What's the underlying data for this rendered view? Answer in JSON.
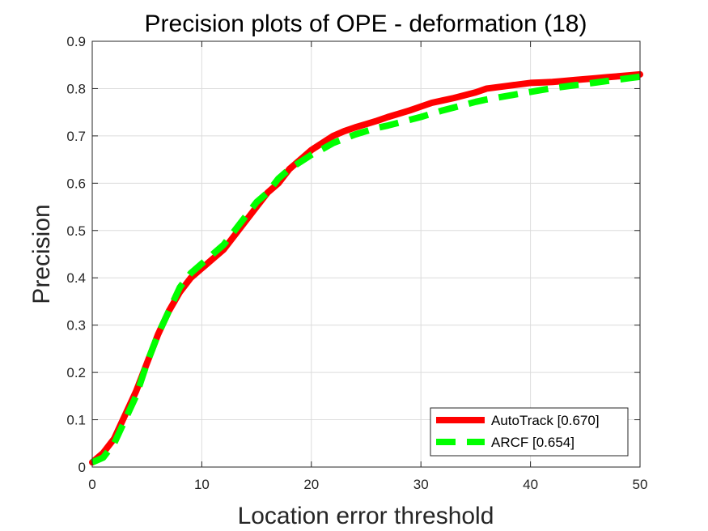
{
  "chart_data": {
    "type": "line",
    "title": "Precision plots of OPE - deformation (18)",
    "xlabel": "Location error threshold",
    "ylabel": "Precision",
    "xlim": [
      0,
      50
    ],
    "ylim": [
      0,
      0.9
    ],
    "x_ticks": [
      "0",
      "10",
      "20",
      "30",
      "40",
      "50"
    ],
    "y_ticks": [
      "0",
      "0.1",
      "0.2",
      "0.3",
      "0.4",
      "0.5",
      "0.6",
      "0.7",
      "0.8",
      "0.9"
    ],
    "grid": true,
    "legend_position": "bottom-right",
    "x": [
      0,
      1,
      2,
      3,
      4,
      5,
      6,
      7,
      8,
      9,
      10,
      11,
      12,
      13,
      14,
      15,
      16,
      17,
      18,
      19,
      20,
      21,
      22,
      23,
      24,
      25,
      26,
      27,
      28,
      29,
      30,
      31,
      32,
      33,
      34,
      35,
      36,
      37,
      38,
      39,
      40,
      41,
      42,
      43,
      44,
      45,
      46,
      47,
      48,
      49,
      50
    ],
    "series": [
      {
        "name": "AutoTrack [0.670]",
        "color": "#ff0000",
        "style": "solid",
        "values": [
          0.01,
          0.03,
          0.06,
          0.11,
          0.16,
          0.22,
          0.28,
          0.33,
          0.37,
          0.4,
          0.42,
          0.44,
          0.46,
          0.49,
          0.52,
          0.55,
          0.58,
          0.6,
          0.63,
          0.65,
          0.67,
          0.685,
          0.7,
          0.71,
          0.718,
          0.725,
          0.732,
          0.74,
          0.747,
          0.754,
          0.762,
          0.77,
          0.775,
          0.78,
          0.786,
          0.792,
          0.8,
          0.803,
          0.806,
          0.809,
          0.812,
          0.813,
          0.814,
          0.816,
          0.818,
          0.82,
          0.822,
          0.824,
          0.826,
          0.828,
          0.83
        ]
      },
      {
        "name": "ARCF [0.654]",
        "color": "#00ff00",
        "style": "dashed",
        "values": [
          0.01,
          0.02,
          0.05,
          0.1,
          0.15,
          0.22,
          0.28,
          0.33,
          0.38,
          0.41,
          0.43,
          0.45,
          0.47,
          0.5,
          0.53,
          0.56,
          0.58,
          0.61,
          0.63,
          0.645,
          0.66,
          0.672,
          0.685,
          0.694,
          0.703,
          0.71,
          0.717,
          0.722,
          0.728,
          0.734,
          0.74,
          0.747,
          0.754,
          0.76,
          0.766,
          0.772,
          0.777,
          0.781,
          0.785,
          0.789,
          0.793,
          0.797,
          0.801,
          0.804,
          0.807,
          0.81,
          0.813,
          0.816,
          0.819,
          0.822,
          0.825
        ]
      }
    ]
  }
}
